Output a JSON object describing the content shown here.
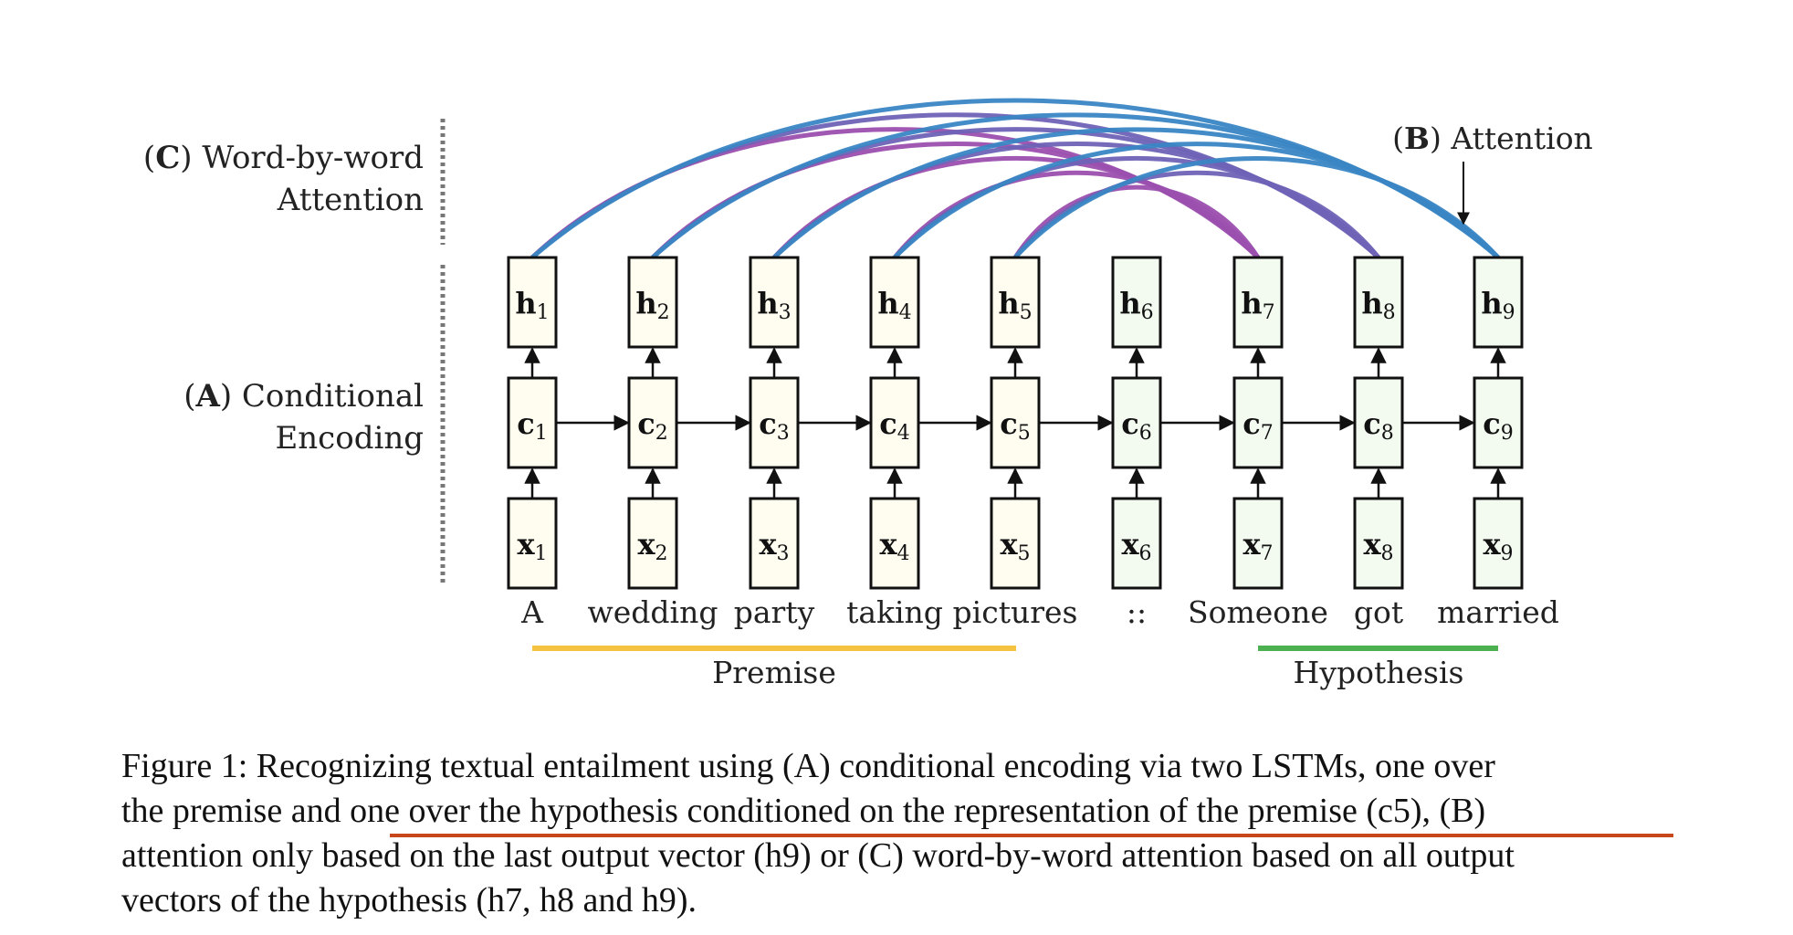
{
  "labels": {
    "c_prefix": "(",
    "c_tag": "C",
    "c_text": ") Word-by-word",
    "c_text2": "Attention",
    "a_prefix": "(",
    "a_tag": "A",
    "a_text": ") Conditional",
    "a_text2": "Encoding",
    "b_label": "(B) Attention"
  },
  "boxes": {
    "h": [
      "h",
      "h",
      "h",
      "h",
      "h",
      "h",
      "h",
      "h",
      "h"
    ],
    "c": [
      "c",
      "c",
      "c",
      "c",
      "c",
      "c",
      "c",
      "c",
      "c"
    ],
    "x": [
      "x",
      "x",
      "x",
      "x",
      "x",
      "x",
      "x",
      "x",
      "x"
    ],
    "subscripts": [
      "1",
      "2",
      "3",
      "4",
      "5",
      "6",
      "7",
      "8",
      "9"
    ]
  },
  "words": [
    "A",
    "wedding",
    "party",
    "taking",
    "pictures",
    "::",
    "Someone",
    "got",
    "married"
  ],
  "groups": {
    "premise": "Premise",
    "hypothesis": "Hypothesis"
  },
  "colors": {
    "premise_fill": "#fffdf0",
    "hypothesis_fill": "#f3faf0",
    "premise_bar": "#f5c242",
    "hypothesis_bar": "#4caf50",
    "attn_purple": "#9b4fae",
    "attn_blue": "#3a86c4",
    "caption_underline": "#c8461c"
  },
  "caption": {
    "line1": "Figure 1: Recognizing textual entailment using (A) conditional encoding via two LSTMs, one over",
    "line2": "the premise and one over the hypothesis conditioned on the representation of the premise (c5), (B)",
    "line3": "attention only based on the last output vector (h9) or (C) word-by-word attention based on all output",
    "line4": "vectors of the hypothesis (h7, h8 and h9)."
  }
}
